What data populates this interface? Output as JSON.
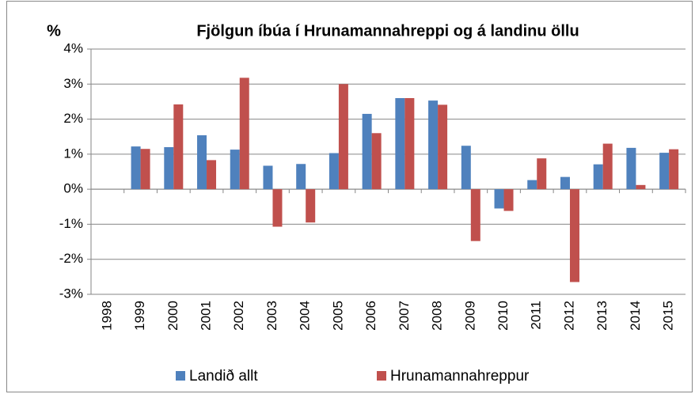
{
  "chart_data": {
    "type": "bar",
    "title": "Fjölgun íbúa í Hrunamannahreppi og á landinu öllu",
    "y_label": "%",
    "categories": [
      "1998",
      "1999",
      "2000",
      "2001",
      "2002",
      "2003",
      "2004",
      "2005",
      "2006",
      "2007",
      "2008",
      "2009",
      "2010",
      "2011",
      "2012",
      "2013",
      "2014",
      "2015"
    ],
    "series": [
      {
        "name": "Landið allt",
        "color": "#4f81bd",
        "values": [
          null,
          1.22,
          1.2,
          1.54,
          1.13,
          0.67,
          0.72,
          1.03,
          2.15,
          2.6,
          2.53,
          1.24,
          -0.55,
          0.26,
          0.35,
          0.71,
          1.18,
          1.04
        ]
      },
      {
        "name": "Hrunamannahreppur",
        "color": "#c0504d",
        "values": [
          null,
          1.15,
          2.42,
          0.83,
          3.18,
          -1.07,
          -0.95,
          3.0,
          1.6,
          2.6,
          2.41,
          -1.48,
          -0.62,
          0.88,
          -2.65,
          1.3,
          0.12,
          1.14
        ]
      }
    ],
    "ylim": [
      -3,
      4
    ],
    "yticks": [
      {
        "value": -3,
        "label": "-3%"
      },
      {
        "value": -2,
        "label": "-2%"
      },
      {
        "value": -1,
        "label": "-1%"
      },
      {
        "value": 0,
        "label": "0%"
      },
      {
        "value": 1,
        "label": "1%"
      },
      {
        "value": 2,
        "label": "2%"
      },
      {
        "value": 3,
        "label": "3%"
      },
      {
        "value": 4,
        "label": "4%"
      }
    ],
    "grid": true,
    "legend": "bottom"
  }
}
